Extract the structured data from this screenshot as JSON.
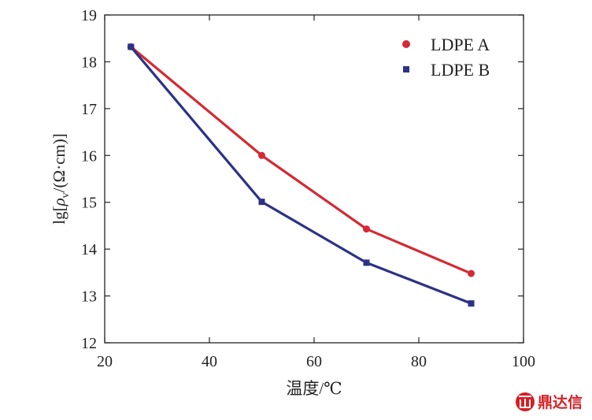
{
  "chart_data": {
    "type": "line",
    "xlabel": "温度/℃",
    "ylabel_parts": {
      "pre": "lg[",
      "rho": "ρ",
      "sub": "v",
      "post": "/(Ω·cm)]"
    },
    "xlim": [
      20,
      100
    ],
    "ylim": [
      12,
      19
    ],
    "x_ticks": [
      20,
      40,
      60,
      80,
      100
    ],
    "y_ticks": [
      12,
      13,
      14,
      15,
      16,
      17,
      18,
      19
    ],
    "grid": false,
    "legend_position": "top-right",
    "series": [
      {
        "name": "LDPE A",
        "color": "#d42a33",
        "marker": "circle",
        "x": [
          25,
          50,
          70,
          90
        ],
        "y": [
          18.32,
          16.0,
          14.43,
          13.48
        ]
      },
      {
        "name": "LDPE B",
        "color": "#2c3287",
        "marker": "square",
        "x": [
          25,
          50,
          70,
          90
        ],
        "y": [
          18.32,
          15.01,
          13.71,
          12.84
        ]
      }
    ]
  },
  "watermark": {
    "text": "鼎达信",
    "icon": "dingdaxin-logo-icon",
    "color": "#d42027"
  }
}
